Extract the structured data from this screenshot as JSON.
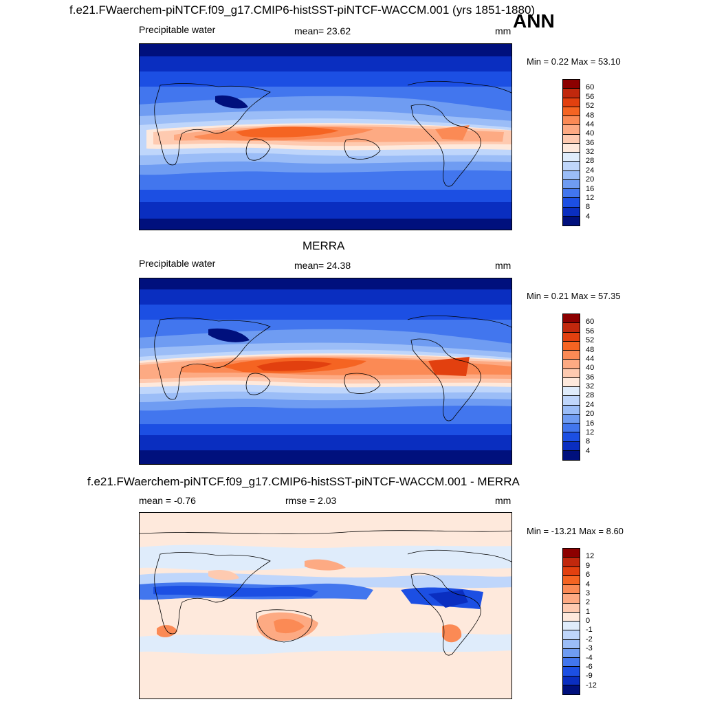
{
  "top_panel": {
    "title": "f.e21.FWaerchem-piNTCF.f09_g17.CMIP6-histSST-piNTCF-WACCM.001 (yrs 1851-1880)",
    "season": "ANN",
    "variable": "Precipitable water",
    "mean_text": "mean=  23.62",
    "units": "mm",
    "minmax": "Min =   0.22 Max =  53.10"
  },
  "middle_panel": {
    "title": "MERRA",
    "variable": "Precipitable water",
    "mean_text": "mean=  24.38",
    "units": "mm",
    "minmax": "Min =   0.21 Max =  57.35"
  },
  "bottom_panel": {
    "title": "f.e21.FWaerchem-piNTCF.f09_g17.CMIP6-histSST-piNTCF-WACCM.001 - MERRA",
    "mean_text": "mean =  -0.76",
    "rmse_text": "rmse =   2.03",
    "units": "mm",
    "minmax": "Min = -13.21 Max =   8.60"
  },
  "colorbar_main": {
    "labels": [
      "60",
      "56",
      "52",
      "48",
      "44",
      "40",
      "36",
      "32",
      "28",
      "24",
      "20",
      "16",
      "12",
      "8",
      "4"
    ],
    "colors": [
      "#8c0000",
      "#c1280d",
      "#e2400f",
      "#f56422",
      "#fb8a55",
      "#fdaa83",
      "#fecab0",
      "#fee9dc",
      "#dfecfb",
      "#bfd6fb",
      "#9bbdf7",
      "#6f9cf2",
      "#4276ee",
      "#1c4fe3",
      "#0a2ec0",
      "#00107d"
    ]
  },
  "colorbar_diff": {
    "labels": [
      "12",
      "9",
      "6",
      "4",
      "3",
      "2",
      "1",
      "0",
      "-1",
      "-2",
      "-3",
      "-4",
      "-6",
      "-9",
      "-12"
    ],
    "colors": [
      "#8c0000",
      "#c1280d",
      "#e2400f",
      "#f56422",
      "#fb8a55",
      "#fdaa83",
      "#fecab0",
      "#fee9dc",
      "#dfecfb",
      "#bfd6fb",
      "#9bbdf7",
      "#6f9cf2",
      "#4276ee",
      "#1c4fe3",
      "#0a2ec0",
      "#00107d"
    ]
  }
}
